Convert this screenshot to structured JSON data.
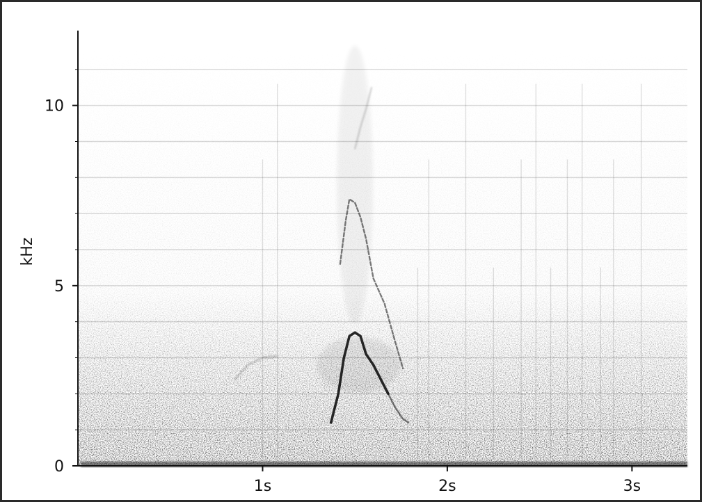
{
  "chart_data": {
    "type": "spectrogram",
    "ylabel": "kHz",
    "xlabel": "",
    "x_unit": "s",
    "y_unit": "kHz",
    "xlim": [
      0,
      3.3
    ],
    "ylim": [
      0,
      12
    ],
    "x_ticks": [
      {
        "value": 1,
        "label": "1s"
      },
      {
        "value": 2,
        "label": "2s"
      },
      {
        "value": 3,
        "label": "3s"
      }
    ],
    "y_ticks": [
      {
        "value": 0,
        "label": "0"
      },
      {
        "value": 5,
        "label": "5"
      },
      {
        "value": 10,
        "label": "10"
      }
    ],
    "gridlines_khz": [
      1,
      2,
      3,
      4,
      5,
      6,
      7,
      8,
      9,
      10,
      11
    ],
    "grid": true,
    "colors": {
      "ink": "#111111",
      "grid": "#d9d9d9",
      "frame": "#2a2a2a"
    },
    "series": [
      {
        "id": "fundamental",
        "points": [
          [
            1.37,
            1.2
          ],
          [
            1.41,
            2.0
          ],
          [
            1.44,
            3.0
          ],
          [
            1.47,
            3.6
          ],
          [
            1.5,
            3.7
          ],
          [
            1.53,
            3.6
          ],
          [
            1.56,
            3.1
          ],
          [
            1.6,
            2.8
          ],
          [
            1.64,
            2.4
          ],
          [
            1.68,
            2.0
          ]
        ]
      },
      {
        "id": "lower-tail",
        "points": [
          [
            1.68,
            2.0
          ],
          [
            1.72,
            1.6
          ],
          [
            1.76,
            1.3
          ],
          [
            1.79,
            1.2
          ]
        ]
      },
      {
        "id": "upper-harmonic",
        "points": [
          [
            1.42,
            5.6
          ],
          [
            1.45,
            6.8
          ],
          [
            1.47,
            7.4
          ],
          [
            1.5,
            7.3
          ],
          [
            1.53,
            6.9
          ],
          [
            1.56,
            6.3
          ],
          [
            1.6,
            5.2
          ],
          [
            1.66,
            4.5
          ],
          [
            1.72,
            3.4
          ],
          [
            1.76,
            2.7
          ]
        ]
      },
      {
        "id": "faint-upper",
        "points": [
          [
            1.5,
            8.8
          ],
          [
            1.53,
            9.4
          ],
          [
            1.56,
            9.9
          ],
          [
            1.59,
            10.5
          ]
        ]
      },
      {
        "id": "early-note",
        "points": [
          [
            0.85,
            2.4
          ],
          [
            0.92,
            2.8
          ],
          [
            1.0,
            3.0
          ],
          [
            1.08,
            3.05
          ]
        ]
      }
    ],
    "transients_s": [
      1.0,
      1.08,
      1.84,
      1.9,
      2.1,
      2.25,
      2.4,
      2.48,
      2.56,
      2.65,
      2.73,
      2.83,
      2.9,
      3.05
    ]
  }
}
